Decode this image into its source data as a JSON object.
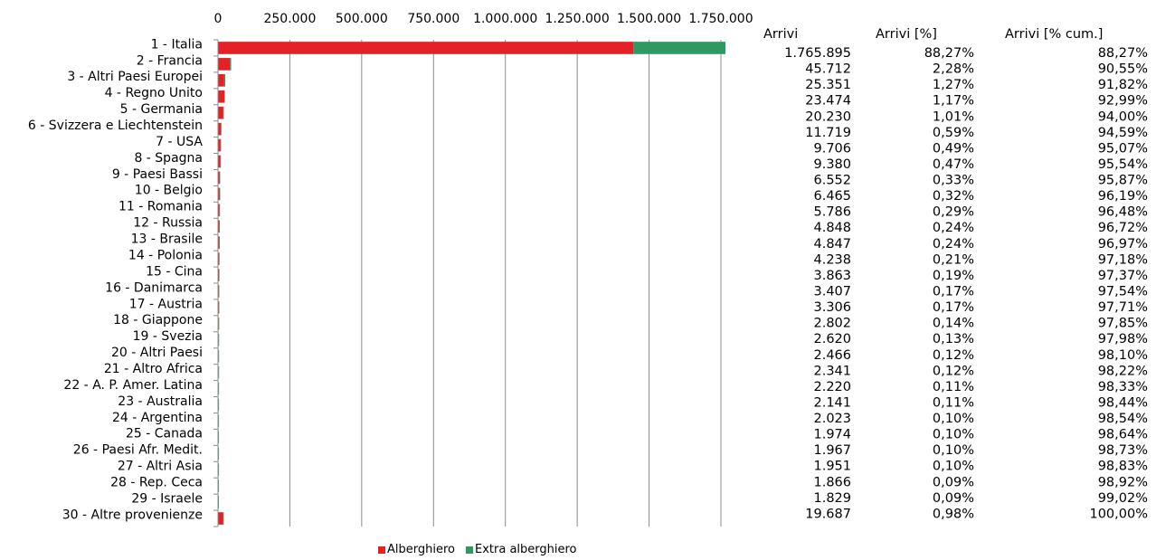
{
  "chart_data": {
    "type": "bar",
    "orientation": "horizontal",
    "stacked": true,
    "xlim": [
      0,
      1750000
    ],
    "x_ticks": [
      "0",
      "250.000",
      "500.000",
      "750.000",
      "1.000.000",
      "1.250.000",
      "1.500.000",
      "1.750.000"
    ],
    "x_tick_values": [
      0,
      250000,
      500000,
      750000,
      1000000,
      1250000,
      1500000,
      1750000
    ],
    "grid": "vertical",
    "legend_position": "bottom",
    "colors": {
      "Alberghiero": "#e32127",
      "Extra alberghiero": "#2e9a62"
    },
    "categories": [
      "1 - Italia",
      "2 - Francia",
      "3 - Altri Paesi Europei",
      "4 - Regno Unito",
      "5 - Germania",
      "6 - Svizzera e Liechtenstein",
      "7 - USA",
      "8 - Spagna",
      "9 - Paesi Bassi",
      "10 - Belgio",
      "11 - Romania",
      "12 - Russia",
      "13 - Brasile",
      "14 - Polonia",
      "15 - Cina",
      "16 - Danimarca",
      "17 - Austria",
      "18 - Giappone",
      "19 - Svezia",
      "20 - Altri Paesi",
      "21 - Altro Africa",
      "22 - A. P. Amer. Latina",
      "23 - Australia",
      "24 - Argentina",
      "25 - Canada",
      "26 - Paesi Afr. Medit.",
      "27 - Altri Asia",
      "28 - Rep. Ceca",
      "29 - Israele",
      "30 - Altre provenienze"
    ],
    "series": [
      {
        "name": "Alberghiero",
        "values": [
          1445000,
          41000,
          21500,
          22500,
          18500,
          10500,
          9000,
          8500,
          6000,
          6000,
          5400,
          4600,
          4600,
          4000,
          3700,
          3000,
          3000,
          2700,
          2400,
          2300,
          2200,
          2100,
          2000,
          1900,
          1800,
          1850,
          1850,
          1750,
          1700,
          18500
        ]
      },
      {
        "name": "Extra alberghiero",
        "values": [
          320895,
          4712,
          3851,
          974,
          1730,
          1219,
          706,
          880,
          552,
          465,
          386,
          248,
          247,
          238,
          163,
          407,
          306,
          102,
          220,
          166,
          141,
          120,
          141,
          123,
          174,
          117,
          101,
          116,
          129,
          1187
        ]
      }
    ],
    "table": {
      "headers": [
        "Arrivi",
        "Arrivi [%]",
        "Arrivi [% cum.]"
      ],
      "rows": [
        [
          "1.765.895",
          "88,27%",
          "88,27%"
        ],
        [
          "45.712",
          "2,28%",
          "90,55%"
        ],
        [
          "25.351",
          "1,27%",
          "91,82%"
        ],
        [
          "23.474",
          "1,17%",
          "92,99%"
        ],
        [
          "20.230",
          "1,01%",
          "94,00%"
        ],
        [
          "11.719",
          "0,59%",
          "94,59%"
        ],
        [
          "9.706",
          "0,49%",
          "95,07%"
        ],
        [
          "9.380",
          "0,47%",
          "95,54%"
        ],
        [
          "6.552",
          "0,33%",
          "95,87%"
        ],
        [
          "6.465",
          "0,32%",
          "96,19%"
        ],
        [
          "5.786",
          "0,29%",
          "96,48%"
        ],
        [
          "4.848",
          "0,24%",
          "96,72%"
        ],
        [
          "4.847",
          "0,24%",
          "96,97%"
        ],
        [
          "4.238",
          "0,21%",
          "97,18%"
        ],
        [
          "3.863",
          "0,19%",
          "97,37%"
        ],
        [
          "3.407",
          "0,17%",
          "97,54%"
        ],
        [
          "3.306",
          "0,17%",
          "97,71%"
        ],
        [
          "2.802",
          "0,14%",
          "97,85%"
        ],
        [
          "2.620",
          "0,13%",
          "97,98%"
        ],
        [
          "2.466",
          "0,12%",
          "98,10%"
        ],
        [
          "2.341",
          "0,12%",
          "98,22%"
        ],
        [
          "2.220",
          "0,11%",
          "98,33%"
        ],
        [
          "2.141",
          "0,11%",
          "98,44%"
        ],
        [
          "2.023",
          "0,10%",
          "98,54%"
        ],
        [
          "1.974",
          "0,10%",
          "98,64%"
        ],
        [
          "1.967",
          "0,10%",
          "98,73%"
        ],
        [
          "1.951",
          "0,10%",
          "98,83%"
        ],
        [
          "1.866",
          "0,09%",
          "98,92%"
        ],
        [
          "1.829",
          "0,09%",
          "99,02%"
        ],
        [
          "19.687",
          "0,98%",
          "100,00%"
        ]
      ]
    }
  }
}
